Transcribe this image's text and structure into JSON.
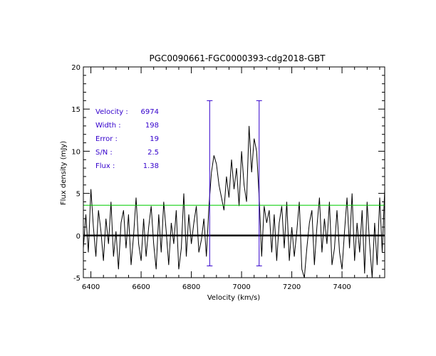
{
  "chart_data": {
    "type": "line",
    "title": "PGC0090661-FGC0000393-cdg2018-GBT",
    "xlabel": "Velocity (km/s)",
    "ylabel": "Flux density (mJy)",
    "xlim": [
      6370,
      7570
    ],
    "ylim": [
      -5,
      20
    ],
    "x_ticks": [
      6400,
      6600,
      6800,
      7000,
      7200,
      7400
    ],
    "y_ticks": [
      -5,
      0,
      5,
      10,
      15,
      20
    ],
    "grid": false,
    "legend": "none",
    "series": [
      {
        "style": "spectrum",
        "color": "#000000",
        "x": [
          6370,
          6380,
          6390,
          6400,
          6410,
          6420,
          6430,
          6440,
          6450,
          6460,
          6470,
          6480,
          6490,
          6500,
          6510,
          6520,
          6530,
          6540,
          6550,
          6560,
          6570,
          6580,
          6590,
          6600,
          6610,
          6620,
          6630,
          6640,
          6650,
          6660,
          6670,
          6680,
          6690,
          6700,
          6710,
          6720,
          6730,
          6740,
          6750,
          6760,
          6770,
          6780,
          6790,
          6800,
          6810,
          6820,
          6830,
          6840,
          6850,
          6860,
          6870,
          6880,
          6890,
          6900,
          6910,
          6920,
          6930,
          6940,
          6950,
          6960,
          6970,
          6980,
          6990,
          7000,
          7010,
          7020,
          7030,
          7040,
          7050,
          7060,
          7070,
          7080,
          7090,
          7100,
          7110,
          7120,
          7130,
          7140,
          7150,
          7160,
          7170,
          7180,
          7190,
          7200,
          7210,
          7220,
          7230,
          7240,
          7250,
          7260,
          7270,
          7280,
          7290,
          7300,
          7310,
          7320,
          7330,
          7340,
          7350,
          7360,
          7370,
          7380,
          7390,
          7400,
          7410,
          7420,
          7430,
          7440,
          7450,
          7460,
          7470,
          7480,
          7490,
          7500,
          7510,
          7520,
          7530,
          7540,
          7550,
          7560,
          7570
        ],
        "y": [
          -1.5,
          2.5,
          -2.0,
          5.5,
          1.0,
          -2.5,
          3.0,
          0.5,
          -3.0,
          2.0,
          -1.0,
          4.0,
          -2.5,
          0.5,
          -4.0,
          1.5,
          3.0,
          -1.5,
          2.5,
          -3.5,
          0.0,
          4.5,
          -1.0,
          -3.0,
          2.0,
          -2.5,
          1.0,
          3.5,
          -1.0,
          -4.0,
          2.5,
          -2.0,
          4.0,
          0.5,
          -3.5,
          1.5,
          -1.0,
          3.0,
          -4.0,
          -1.5,
          5.0,
          -2.5,
          2.5,
          -1.0,
          1.5,
          3.5,
          -2.0,
          -0.5,
          2.0,
          -2.5,
          3.5,
          7.5,
          9.5,
          8.5,
          6.0,
          4.5,
          3.0,
          7.0,
          4.5,
          9.0,
          5.5,
          8.0,
          3.5,
          10.0,
          6.0,
          4.0,
          13.0,
          7.5,
          11.5,
          10.0,
          4.5,
          -2.5,
          3.5,
          1.5,
          3.0,
          -2.0,
          2.5,
          -3.0,
          1.5,
          3.5,
          -1.5,
          4.0,
          -3.0,
          1.0,
          -2.5,
          0.5,
          4.0,
          -4.0,
          -5.0,
          -1.5,
          1.5,
          3.0,
          -3.5,
          1.0,
          4.5,
          -2.0,
          2.0,
          -1.0,
          4.0,
          -3.5,
          -1.5,
          3.0,
          -2.0,
          -4.0,
          0.5,
          4.5,
          -1.5,
          5.0,
          -3.0,
          1.5,
          -2.0,
          3.0,
          -4.5,
          4.0,
          -1.0,
          -5.0,
          1.5,
          -3.5,
          4.5,
          -2.0,
          5.5
        ]
      },
      {
        "style": "baseline",
        "color": "#000000",
        "x": [
          6370,
          7570
        ],
        "y": [
          0,
          0
        ]
      },
      {
        "style": "threshold",
        "color": "#00cc00",
        "x": [
          6370,
          7570
        ],
        "y": [
          3.6,
          3.6
        ]
      }
    ],
    "markers": {
      "color": "#3300cc",
      "x": [
        6873,
        7070
      ],
      "y_range": [
        -3.6,
        16
      ]
    },
    "annotations": {
      "color": "#3300cc",
      "rows": [
        {
          "label": "Velocity :",
          "value": "6974"
        },
        {
          "label": "Width :",
          "value": "198"
        },
        {
          "label": "Error :",
          "value": "19"
        },
        {
          "label": "S/N :",
          "value": "2.5"
        },
        {
          "label": "Flux :",
          "value": "1.38"
        }
      ]
    }
  }
}
